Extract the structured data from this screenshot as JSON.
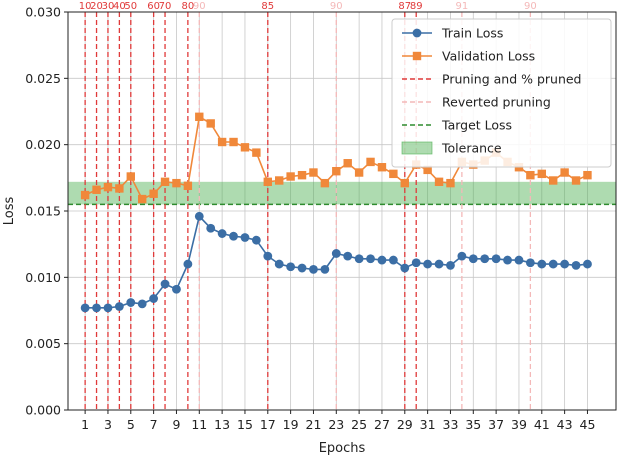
{
  "chart_data": {
    "type": "line",
    "xlabel": "Epochs",
    "ylabel": "Loss",
    "xlim": [
      -0.5,
      47.5
    ],
    "ylim": [
      0,
      0.03
    ],
    "xticks": [
      1,
      3,
      5,
      7,
      9,
      11,
      13,
      15,
      17,
      19,
      21,
      23,
      25,
      27,
      29,
      31,
      33,
      35,
      37,
      39,
      41,
      43,
      45
    ],
    "yticks": [
      0,
      0.005,
      0.01,
      0.015,
      0.02,
      0.025,
      0.03
    ],
    "ytick_labels": [
      "0.000",
      "0.005",
      "0.010",
      "0.015",
      "0.020",
      "0.025",
      "0.030"
    ],
    "grid": true,
    "legend_position": "top-right",
    "x": [
      1,
      2,
      3,
      4,
      5,
      6,
      7,
      8,
      9,
      10,
      11,
      12,
      13,
      14,
      15,
      16,
      17,
      18,
      19,
      20,
      21,
      22,
      23,
      24,
      25,
      26,
      27,
      28,
      29,
      30,
      31,
      32,
      33,
      34,
      35,
      36,
      37,
      38,
      39,
      40,
      41,
      42,
      43,
      44,
      45
    ],
    "series": [
      {
        "name": "Train Loss",
        "color": "#3b6ea5",
        "marker": "circle",
        "values": [
          0.0077,
          0.0077,
          0.0077,
          0.0078,
          0.0081,
          0.008,
          0.0084,
          0.0095,
          0.0091,
          0.011,
          0.0146,
          0.0137,
          0.0133,
          0.0131,
          0.013,
          0.0128,
          0.0116,
          0.011,
          0.0108,
          0.0107,
          0.0106,
          0.0106,
          0.0118,
          0.0116,
          0.0114,
          0.0114,
          0.0113,
          0.0113,
          0.0107,
          0.0111,
          0.011,
          0.011,
          0.0109,
          0.0116,
          0.0114,
          0.0114,
          0.0114,
          0.0113,
          0.0113,
          0.0111,
          0.011,
          0.011,
          0.011,
          0.0109,
          0.011
        ]
      },
      {
        "name": "Validation Loss",
        "color": "#f0883a",
        "marker": "square",
        "values": [
          0.0162,
          0.0166,
          0.0168,
          0.0167,
          0.0176,
          0.0159,
          0.0163,
          0.0172,
          0.0171,
          0.0169,
          0.0221,
          0.0216,
          0.0202,
          0.0202,
          0.0198,
          0.0194,
          0.0172,
          0.0173,
          0.0176,
          0.0177,
          0.0179,
          0.0171,
          0.018,
          0.0186,
          0.0179,
          0.0187,
          0.0183,
          0.0178,
          0.0171,
          0.0185,
          0.0181,
          0.0172,
          0.0171,
          0.0187,
          0.0185,
          0.0188,
          0.0194,
          0.0187,
          0.0183,
          0.0177,
          0.0178,
          0.0173,
          0.0179,
          0.0173,
          0.0177
        ]
      }
    ],
    "target_loss": {
      "name": "Target Loss",
      "value": 0.0155,
      "color": "#2e8b2e"
    },
    "tolerance": {
      "name": "Tolerance",
      "range": [
        0.0155,
        0.0172
      ],
      "color": "#4caf50"
    },
    "pruning_events": {
      "name": "Pruning and % pruned",
      "color": "#e03a3a",
      "events": [
        {
          "x": 1,
          "label": "10"
        },
        {
          "x": 2,
          "label": "20"
        },
        {
          "x": 3,
          "label": "30"
        },
        {
          "x": 4,
          "label": "40"
        },
        {
          "x": 5,
          "label": "50"
        },
        {
          "x": 7,
          "label": "60"
        },
        {
          "x": 8,
          "label": "70"
        },
        {
          "x": 10,
          "label": "80"
        },
        {
          "x": 17,
          "label": "85"
        },
        {
          "x": 29,
          "label": "87"
        },
        {
          "x": 30,
          "label": "89"
        }
      ]
    },
    "reverted_pruning": {
      "name": "Reverted pruning",
      "color": "#f4b8b8",
      "events": [
        {
          "x": 11,
          "label": "90"
        },
        {
          "x": 23,
          "label": "90"
        },
        {
          "x": 34,
          "label": "91"
        },
        {
          "x": 40,
          "label": "90"
        }
      ]
    }
  }
}
